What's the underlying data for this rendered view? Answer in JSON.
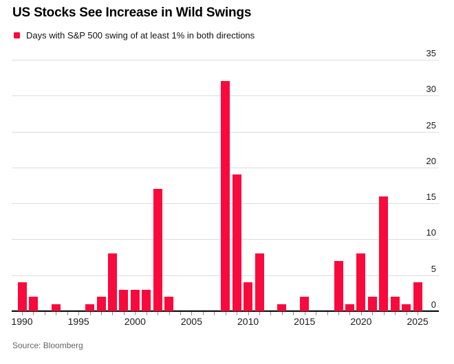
{
  "header": {
    "title": "US Stocks See Increase in Wild Swings",
    "legend_label": "Days with S&P 500 swing of at least 1% in both directions"
  },
  "source": "Source: Bloomberg",
  "colors": {
    "bar": "#FA0A3C",
    "gridline": "#DCDCDC",
    "axis": "#000000",
    "tick": "#8A8A8A",
    "source_text": "#646464"
  },
  "chart_data": {
    "type": "bar",
    "title": "US Stocks See Increase in Wild Swings",
    "series_label": "Days with S&P 500 swing of at least 1% in both directions",
    "x": [
      1990,
      1991,
      1992,
      1993,
      1994,
      1995,
      1996,
      1997,
      1998,
      1999,
      2000,
      2001,
      2002,
      2003,
      2004,
      2005,
      2006,
      2007,
      2008,
      2009,
      2010,
      2011,
      2012,
      2013,
      2014,
      2015,
      2016,
      2017,
      2018,
      2019,
      2020,
      2021,
      2022,
      2023,
      2024,
      2025
    ],
    "values": [
      4,
      2,
      0,
      1,
      0,
      0,
      1,
      2,
      8,
      3,
      3,
      3,
      17,
      2,
      0,
      0,
      0,
      0,
      32,
      19,
      4,
      8,
      0,
      1,
      0,
      2,
      0,
      0,
      7,
      1,
      8,
      2,
      16,
      2,
      1,
      4
    ],
    "ylim": [
      0,
      35
    ],
    "yticks": [
      0,
      5,
      10,
      15,
      20,
      25,
      30,
      35
    ],
    "xtick_labels": [
      1990,
      1995,
      2000,
      2005,
      2010,
      2015,
      2020,
      2025
    ],
    "grid": true,
    "y_axis_side": "right",
    "legend_position": "top-left",
    "ylabel": "",
    "xlabel": ""
  }
}
